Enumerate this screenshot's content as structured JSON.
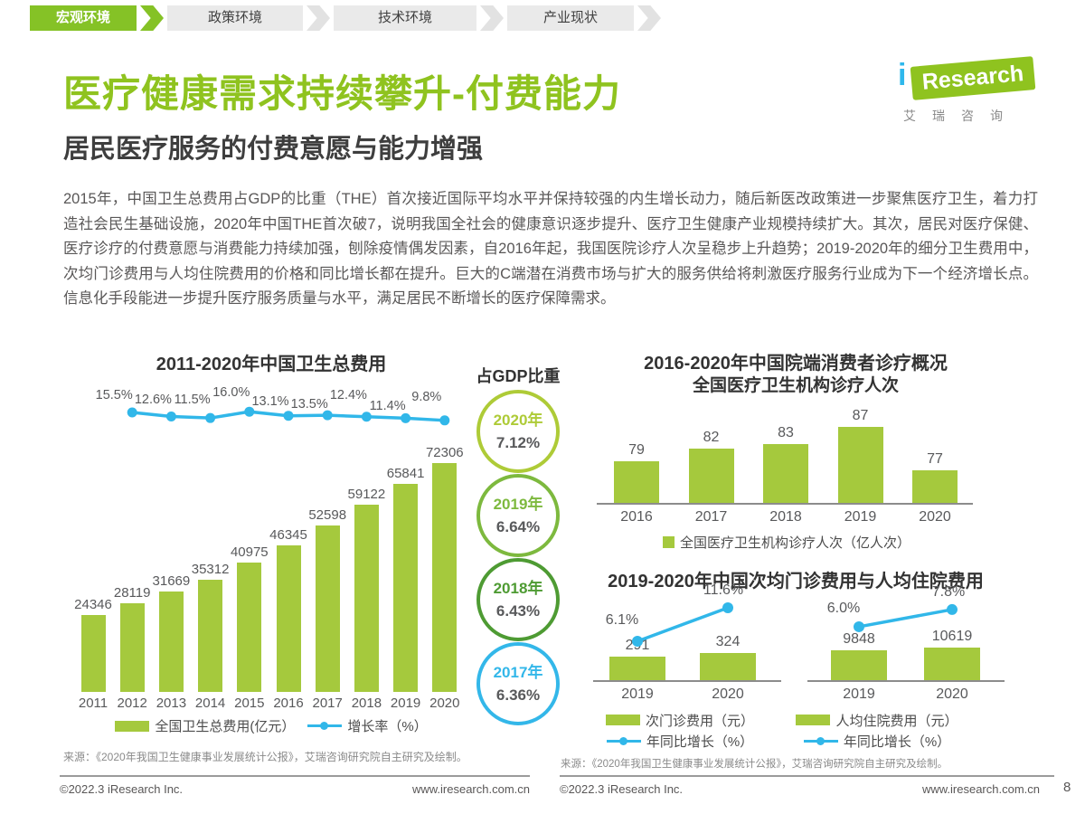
{
  "nav": {
    "tabs": [
      {
        "label": "宏观环境",
        "active": true
      },
      {
        "label": "政策环境",
        "active": false
      },
      {
        "label": "技术环境",
        "active": false
      },
      {
        "label": "产业现状",
        "active": false
      }
    ]
  },
  "logo": {
    "i": "i",
    "brand": "Research",
    "cn": "艾瑞咨询"
  },
  "page": {
    "title": "医疗健康需求持续攀升-付费能力",
    "subtitle": "居民医疗服务的付费意愿与能力增强",
    "page_number": "8"
  },
  "body_text": "2015年，中国卫生总费用占GDP的比重（THE）首次接近国际平均水平并保持较强的内生增长动力，随后新医改政策进一步聚焦医疗卫生，着力打造社会民生基础设施，2020年中国THE首次破7，说明我国全社会的健康意识逐步提升、医疗卫生健康产业规模持续扩大。其次，居民对医疗保健、医疗诊疗的付费意愿与消费能力持续加强，刨除疫情偶发因素，自2016年起，我国医院诊疗人次呈稳步上升趋势；2019-2020年的细分卫生费用中，次均门诊费用与人均住院费用的价格和同比增长都在提升。巨大的C端潜在消费市场与扩大的服务供给将刺激医疗服务行业成为下一个经济增长点。信息化手段能进一步提升医疗服务质量与水平，满足居民不断增长的医疗保障需求。",
  "colors": {
    "green": "#8FC31F",
    "bar_green": "#A5C93D",
    "cyan": "#31B7E9",
    "dark_text": "#58595B"
  },
  "chart_data": [
    {
      "id": "china-total-health-expenditure",
      "type": "bar",
      "title": "2011-2020年中国卫生总费用",
      "categories": [
        "2011",
        "2012",
        "2013",
        "2014",
        "2015",
        "2016",
        "2017",
        "2018",
        "2019",
        "2020"
      ],
      "series": [
        {
          "name": "全国卫生总费用(亿元）",
          "type": "bar",
          "values": [
            24346,
            28119,
            31669,
            35312,
            40975,
            46345,
            52598,
            59122,
            65841,
            72306
          ]
        },
        {
          "name": "增长率（%）",
          "type": "line",
          "categories": [
            "2012",
            "2013",
            "2014",
            "2015",
            "2016",
            "2017",
            "2018",
            "2019",
            "2020"
          ],
          "values": [
            15.5,
            12.6,
            11.5,
            16.0,
            13.1,
            13.5,
            12.4,
            11.4,
            9.8
          ],
          "labels": [
            "15.5%",
            "12.6%",
            "11.5%",
            "16.0%",
            "13.1%",
            "13.5%",
            "12.4%",
            "11.4%",
            "9.8%"
          ]
        }
      ],
      "legend_position": "bottom",
      "source": "来源：《2020年我国卫生健康事业发展统计公报》，艾瑞咨询研究院自主研究及绘制。"
    },
    {
      "id": "gdp-share",
      "type": "table",
      "title": "占GDP比重",
      "rows": [
        {
          "year": "2020年",
          "value": "7.12%",
          "color": "#AECB37"
        },
        {
          "year": "2019年",
          "value": "6.64%",
          "color": "#7DB93E"
        },
        {
          "year": "2018年",
          "value": "6.43%",
          "color": "#4E9B33"
        },
        {
          "year": "2017年",
          "value": "6.36%",
          "color": "#33B7E9"
        }
      ]
    },
    {
      "id": "medical-institution-visits",
      "type": "bar",
      "title": "2016-2020年中国院端消费者诊疗概况",
      "subtitle": "全国医疗卫生机构诊疗人次",
      "categories": [
        "2016",
        "2017",
        "2018",
        "2019",
        "2020"
      ],
      "values": [
        79,
        82,
        83,
        87,
        77
      ],
      "legend": "全国医疗卫生机构诊疗人次（亿人次）"
    },
    {
      "id": "outpatient-inpatient-cost",
      "type": "bar",
      "title": "2019-2020年中国次均门诊费用与人均住院费用",
      "sub_charts": [
        {
          "categories": [
            "2019",
            "2020"
          ],
          "bar_values": [
            291,
            324
          ],
          "line_values": [
            6.1,
            11.6
          ],
          "line_labels": [
            "6.1%",
            "11.6%"
          ],
          "bar_legend": "次门诊费用（元）",
          "line_legend": "年同比增长（%）"
        },
        {
          "categories": [
            "2019",
            "2020"
          ],
          "bar_values": [
            9848,
            10619
          ],
          "line_values": [
            6.0,
            7.8
          ],
          "line_labels": [
            "6.0%",
            "7.8%"
          ],
          "bar_legend": "人均住院费用（元）",
          "line_legend": "年同比增长（%）"
        }
      ],
      "source": "来源：《2020年我国卫生健康事业发展统计公报》，艾瑞咨询研究院自主研究及绘制。"
    }
  ],
  "footer": {
    "copyright": "©2022.3 iResearch Inc.",
    "website": "www.iresearch.com.cn"
  }
}
